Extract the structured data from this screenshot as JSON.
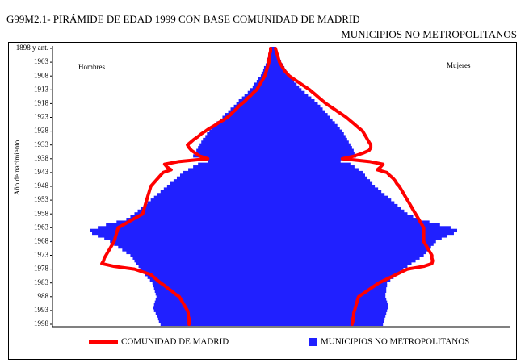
{
  "chart_data": {
    "type": "pyramid",
    "title": "G99M2.1- PIRÁMIDE DE EDAD 1999 CON BASE COMUNIDAD DE MADRID",
    "subtitle": "MUNICIPIOS  NO METROPOLITANOS",
    "y_label": "Año de nacimiento",
    "left_label": "Hombres",
    "right_label": "Mujeres",
    "categories": [
      "1898 y ant.",
      null,
      null,
      null,
      null,
      "1903",
      null,
      null,
      null,
      null,
      "1908",
      null,
      null,
      null,
      null,
      "1913",
      null,
      null,
      null,
      null,
      "1918",
      null,
      null,
      null,
      null,
      "1923",
      null,
      null,
      null,
      null,
      "1928",
      null,
      null,
      null,
      null,
      "1933",
      null,
      null,
      null,
      null,
      "1938",
      null,
      null,
      null,
      null,
      "1943",
      null,
      null,
      null,
      null,
      "1948",
      null,
      null,
      null,
      null,
      "1953",
      null,
      null,
      null,
      null,
      "1958",
      null,
      null,
      null,
      null,
      "1963",
      null,
      null,
      null,
      null,
      "1968",
      null,
      null,
      null,
      null,
      "1973",
      null,
      null,
      null,
      null,
      "1978",
      null,
      null,
      null,
      null,
      "1983",
      null,
      null,
      null,
      null,
      "1988",
      null,
      null,
      null,
      null,
      "1993",
      null,
      null,
      null,
      null,
      "1998"
    ],
    "series": [
      {
        "name": "COMUNIDAD DE MADRID",
        "color": "#ff0000",
        "style": "line",
        "left": [
          0.03,
          0.03,
          0.04,
          0.04,
          0.05,
          0.05,
          0.06,
          0.07,
          0.08,
          0.09,
          0.1,
          0.12,
          0.14,
          0.16,
          0.18,
          0.2,
          0.24,
          0.27,
          0.31,
          0.34,
          0.38,
          0.42,
          0.45,
          0.49,
          0.52,
          0.56,
          0.61,
          0.67,
          0.72,
          0.78,
          0.83,
          0.88,
          0.92,
          0.97,
          1.01,
          1.05,
          1.03,
          1,
          0.95,
          0.9,
          0.8,
          1.15,
          1.33,
          1.3,
          1.25,
          1.35,
          1.38,
          1.41,
          1.44,
          1.47,
          1.5,
          1.51,
          1.52,
          1.53,
          1.54,
          1.55,
          1.56,
          1.57,
          1.58,
          1.59,
          1.6,
          1.66,
          1.72,
          1.78,
          1.84,
          1.9,
          1.91,
          1.92,
          1.93,
          1.94,
          1.95,
          1.97,
          1.99,
          2.01,
          2.03,
          2.05,
          2.07,
          2.08,
          2.1,
          1.95,
          1.7,
          1.6,
          1.5,
          1.46,
          1.42,
          1.38,
          1.33,
          1.29,
          1.24,
          1.2,
          1.15,
          1.13,
          1.11,
          1.09,
          1.07,
          1.05,
          1.04,
          1.04,
          1.03,
          1.03,
          1.03
        ],
        "right": [
          0.03,
          0.04,
          0.05,
          0.06,
          0.07,
          0.08,
          0.1,
          0.12,
          0.14,
          0.17,
          0.2,
          0.25,
          0.3,
          0.35,
          0.4,
          0.45,
          0.49,
          0.53,
          0.57,
          0.61,
          0.65,
          0.7,
          0.75,
          0.8,
          0.85,
          0.9,
          0.94,
          0.98,
          1.02,
          1.06,
          1.1,
          1.12,
          1.14,
          1.16,
          1.18,
          1.2,
          1.2,
          1.18,
          1.1,
          1.0,
          0.85,
          1.18,
          1.35,
          1.32,
          1.28,
          1.4,
          1.43,
          1.47,
          1.5,
          1.52,
          1.55,
          1.57,
          1.59,
          1.61,
          1.63,
          1.65,
          1.67,
          1.69,
          1.71,
          1.73,
          1.75,
          1.77,
          1.79,
          1.81,
          1.83,
          1.85,
          1.85,
          1.85,
          1.85,
          1.85,
          1.85,
          1.87,
          1.89,
          1.91,
          1.93,
          1.95,
          1.95,
          1.96,
          1.95,
          1.85,
          1.65,
          1.58,
          1.51,
          1.44,
          1.37,
          1.3,
          1.25,
          1.2,
          1.15,
          1.1,
          1.05,
          1.04,
          1.03,
          1.02,
          1.01,
          1,
          0.99,
          0.99,
          0.98,
          0.98,
          0.97
        ]
      },
      {
        "name": "MUNICIPIOS NO METROPOLITANOS",
        "color": "#2020ff",
        "style": "bar",
        "left": [
          0.03,
          0.04,
          0.05,
          0.06,
          0.07,
          0.08,
          0.09,
          0.11,
          0.12,
          0.14,
          0.15,
          0.18,
          0.2,
          0.23,
          0.25,
          0.28,
          0.31,
          0.35,
          0.38,
          0.42,
          0.45,
          0.48,
          0.52,
          0.55,
          0.59,
          0.62,
          0.65,
          0.69,
          0.72,
          0.75,
          0.78,
          0.81,
          0.83,
          0.86,
          0.88,
          0.9,
          0.92,
          0.94,
          0.96,
          0.98,
          0.85,
          0.8,
          0.92,
          0.98,
          1.04,
          1.1,
          1.14,
          1.18,
          1.22,
          1.26,
          1.3,
          1.34,
          1.38,
          1.42,
          1.46,
          1.5,
          1.54,
          1.58,
          1.62,
          1.66,
          1.7,
          1.75,
          1.8,
          1.92,
          2.05,
          2.15,
          2.25,
          2.22,
          2.15,
          2.07,
          2,
          1.95,
          1.9,
          1.85,
          1.8,
          1.75,
          1.72,
          1.7,
          1.68,
          1.65,
          1.63,
          1.6,
          1.57,
          1.54,
          1.51,
          1.48,
          1.47,
          1.46,
          1.45,
          1.44,
          1.43,
          1.44,
          1.45,
          1.46,
          1.47,
          1.46,
          1.44,
          1.42,
          1.41,
          1.4,
          1.38
        ],
        "right": [
          0.03,
          0.04,
          0.05,
          0.07,
          0.08,
          0.1,
          0.12,
          0.14,
          0.16,
          0.18,
          0.2,
          0.23,
          0.26,
          0.29,
          0.32,
          0.35,
          0.39,
          0.43,
          0.47,
          0.51,
          0.55,
          0.58,
          0.61,
          0.64,
          0.67,
          0.7,
          0.73,
          0.76,
          0.79,
          0.82,
          0.85,
          0.87,
          0.89,
          0.91,
          0.93,
          0.95,
          0.97,
          0.99,
          1,
          1.02,
          0.88,
          0.83,
          0.95,
          1,
          1.05,
          1.1,
          1.13,
          1.16,
          1.19,
          1.22,
          1.25,
          1.29,
          1.33,
          1.37,
          1.41,
          1.45,
          1.49,
          1.53,
          1.57,
          1.61,
          1.65,
          1.72,
          1.8,
          1.92,
          2.05,
          2.18,
          2.26,
          2.22,
          2.14,
          2.07,
          2,
          1.97,
          1.94,
          1.91,
          1.88,
          1.85,
          1.8,
          1.75,
          1.7,
          1.65,
          1.6,
          1.56,
          1.52,
          1.48,
          1.44,
          1.4,
          1.4,
          1.39,
          1.39,
          1.38,
          1.38,
          1.39,
          1.4,
          1.41,
          1.41,
          1.4,
          1.39,
          1.38,
          1.37,
          1.36,
          1.35
        ]
      }
    ]
  }
}
